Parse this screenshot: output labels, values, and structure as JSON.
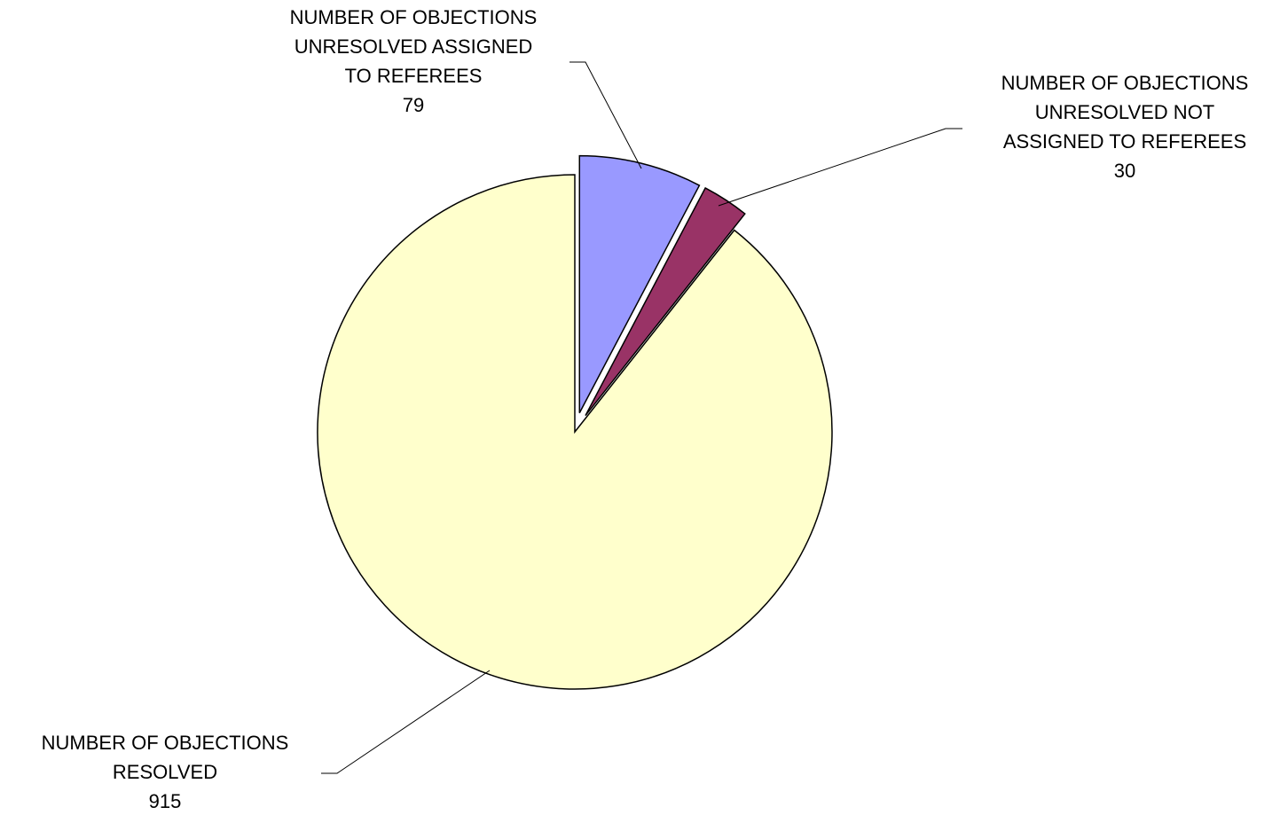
{
  "chart_data": {
    "type": "pie",
    "title": "",
    "series": [
      {
        "values": [
          79,
          30,
          915
        ]
      }
    ],
    "slices": [
      {
        "label_lines": [
          "NUMBER OF OBJECTIONS",
          "UNRESOLVED ASSIGNED",
          "TO REFEREES"
        ],
        "value": 79,
        "value_label": "79",
        "color": "#9999FF",
        "exploded": true
      },
      {
        "label_lines": [
          "NUMBER OF OBJECTIONS",
          "UNRESOLVED NOT",
          "ASSIGNED TO REFEREES"
        ],
        "value": 30,
        "value_label": "30",
        "color": "#993366",
        "exploded": true
      },
      {
        "label_lines": [
          "NUMBER OF OBJECTIONS",
          "RESOLVED"
        ],
        "value": 915,
        "value_label": "915",
        "color": "#FFFFCC",
        "exploded": false
      }
    ],
    "start_angle_deg": 0,
    "direction": "clockwise",
    "legend": "none",
    "data_labels": "outside with leader lines"
  }
}
